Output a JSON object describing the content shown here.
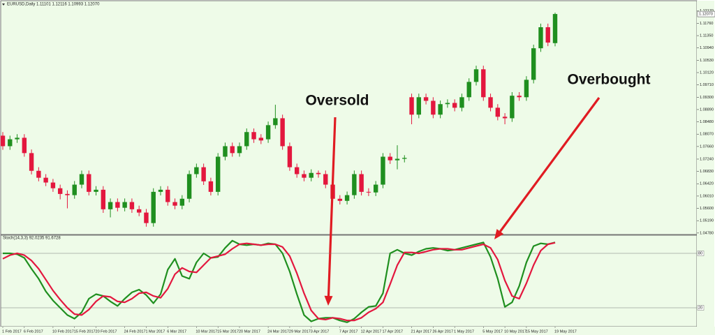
{
  "chart_data": [
    {
      "type": "candlestick",
      "title": "EURUSD,Daily  1.11101 1.12116 1.10993 1.12070",
      "up_color": "#1f8f1f",
      "down_color": "#e3173e",
      "open": [
        1.0802,
        1.0767,
        1.079,
        1.0795,
        1.0744,
        1.0685,
        1.0662,
        1.0646,
        1.0627,
        1.0608,
        1.0604,
        1.0639,
        1.0674,
        1.0615,
        1.0622,
        1.0557,
        1.0581,
        1.0562,
        1.0581,
        1.0557,
        1.0546,
        1.0511,
        1.0615,
        1.0622,
        1.0581,
        1.0569,
        1.0592,
        1.0674,
        1.0697,
        1.065,
        1.0615,
        1.0732,
        1.0767,
        1.0744,
        1.0767,
        1.0814,
        1.0795,
        1.079,
        1.0837,
        1.086,
        1.0767,
        1.0697,
        1.0674,
        1.0662,
        1.0678,
        1.0674,
        1.0639,
        1.0592,
        1.0585,
        1.0604,
        1.0674,
        1.0615,
        1.0613,
        1.0639,
        1.0732,
        1.072,
        1.0725,
        1.093,
        1.0872,
        1.093,
        1.0918,
        1.0872,
        1.0907,
        1.0911,
        1.0895,
        1.093,
        1.0981,
        1.1023,
        1.093,
        1.0895,
        1.0865,
        1.086,
        1.0935,
        1.093,
        1.0988,
        1.1093,
        1.1163,
        1.11101
      ],
      "high": [
        1.0814,
        1.0802,
        1.0807,
        1.0807,
        1.0756,
        1.0697,
        1.0674,
        1.0658,
        1.0639,
        1.062,
        1.0651,
        1.0686,
        1.0686,
        1.0634,
        1.0634,
        1.0593,
        1.0593,
        1.0593,
        1.0593,
        1.0569,
        1.0558,
        1.0627,
        1.0634,
        1.0634,
        1.0593,
        1.0604,
        1.0686,
        1.0709,
        1.0709,
        1.0662,
        1.0744,
        1.0779,
        1.0779,
        1.0779,
        1.0826,
        1.0826,
        1.0807,
        1.0849,
        1.0905,
        1.0872,
        1.0779,
        1.0709,
        1.0686,
        1.069,
        1.0686,
        1.0686,
        1.0651,
        1.0604,
        1.0616,
        1.0686,
        1.0686,
        1.0627,
        1.0651,
        1.0744,
        1.0744,
        1.077,
        1.0737,
        1.0942,
        1.0942,
        1.0942,
        1.093,
        1.0919,
        1.0923,
        1.0923,
        1.0942,
        1.0993,
        1.1035,
        1.1035,
        1.0942,
        1.0907,
        1.0877,
        1.0947,
        1.0947,
        1.1,
        1.1105,
        1.1175,
        1.1175,
        1.12116
      ],
      "low": [
        1.0755,
        1.0755,
        1.0778,
        1.0732,
        1.0673,
        1.065,
        1.0634,
        1.0615,
        1.059,
        1.056,
        1.0592,
        1.0627,
        1.0603,
        1.0603,
        1.0545,
        1.053,
        1.055,
        1.055,
        1.0545,
        1.0534,
        1.0499,
        1.0499,
        1.0603,
        1.0569,
        1.0557,
        1.0557,
        1.058,
        1.0662,
        1.0638,
        1.0603,
        1.0603,
        1.072,
        1.0732,
        1.0732,
        1.0755,
        1.0778,
        1.0774,
        1.0778,
        1.0825,
        1.0755,
        1.0685,
        1.0662,
        1.065,
        1.065,
        1.0662,
        1.0627,
        1.058,
        1.0573,
        1.0573,
        1.0592,
        1.0603,
        1.0601,
        1.0601,
        1.0627,
        1.0708,
        1.069,
        1.0713,
        1.084,
        1.086,
        1.0906,
        1.086,
        1.086,
        1.0895,
        1.0883,
        1.0883,
        1.0918,
        1.0969,
        1.0918,
        1.0883,
        1.0853,
        1.084,
        1.0848,
        1.0918,
        1.0918,
        1.0976,
        1.1081,
        1.11,
        1.10993
      ],
      "close": [
        1.0767,
        1.079,
        1.0795,
        1.0744,
        1.0685,
        1.0662,
        1.0646,
        1.0627,
        1.0608,
        1.0604,
        1.0639,
        1.0674,
        1.0615,
        1.0622,
        1.0557,
        1.0581,
        1.0562,
        1.0581,
        1.0557,
        1.0546,
        1.0511,
        1.0615,
        1.0622,
        1.0581,
        1.0569,
        1.0592,
        1.0674,
        1.0697,
        1.065,
        1.0615,
        1.0732,
        1.0767,
        1.0744,
        1.0767,
        1.0814,
        1.079,
        1.0786,
        1.0837,
        1.086,
        1.0767,
        1.0697,
        1.0674,
        1.0662,
        1.0678,
        1.0674,
        1.0639,
        1.0592,
        1.0585,
        1.0604,
        1.0674,
        1.0615,
        1.0613,
        1.0639,
        1.0732,
        1.072,
        1.0725,
        1.0728,
        1.0872,
        1.093,
        1.0918,
        1.0872,
        1.0907,
        1.0911,
        1.0895,
        1.093,
        1.0981,
        1.1023,
        1.093,
        1.0895,
        1.0865,
        1.086,
        1.0935,
        1.093,
        1.0988,
        1.1093,
        1.1163,
        1.1112,
        1.1207
      ],
      "ylim": [
        1.0473,
        1.1249
      ],
      "yticks": [
        {
          "value": 1.0478,
          "label": "1.04780"
        },
        {
          "value": 1.0519,
          "label": "1.05190"
        },
        {
          "value": 1.056,
          "label": "1.05600"
        },
        {
          "value": 1.0601,
          "label": "1.06010"
        },
        {
          "value": 1.0642,
          "label": "1.06420"
        },
        {
          "value": 1.0683,
          "label": "1.06830"
        },
        {
          "value": 1.0724,
          "label": "1.07240"
        },
        {
          "value": 1.0766,
          "label": "1.07660"
        },
        {
          "value": 1.0807,
          "label": "1.08070"
        },
        {
          "value": 1.0848,
          "label": "1.08480"
        },
        {
          "value": 1.0889,
          "label": "1.08890"
        },
        {
          "value": 1.093,
          "label": "1.09300"
        },
        {
          "value": 1.0971,
          "label": "1.09710"
        },
        {
          "value": 1.1012,
          "label": "1.10120"
        },
        {
          "value": 1.1053,
          "label": "1.10530"
        },
        {
          "value": 1.1094,
          "label": "1.10940"
        },
        {
          "value": 1.1135,
          "label": "1.11350"
        },
        {
          "value": 1.1176,
          "label": "1.11760"
        },
        {
          "value": 1.1217,
          "label": "1.12170"
        }
      ],
      "current_price": {
        "value": 1.1207,
        "label": "1.12070"
      },
      "annotations": [
        "Oversold",
        "Overbought"
      ]
    },
    {
      "type": "line",
      "title": "Stoch(14,3,3) 92.0235 91.6728",
      "categories": [
        "1 Feb 2017",
        null,
        null,
        "6 Feb 2017",
        null,
        null,
        null,
        "10 Feb 2017",
        null,
        null,
        "15 Feb 2017",
        null,
        null,
        "20 Feb 2017",
        null,
        null,
        null,
        "24 Feb 2017",
        null,
        null,
        "1 Mar 2017",
        null,
        null,
        "6 Mar 2017",
        null,
        null,
        null,
        "10 Mar 2017",
        null,
        null,
        "15 Mar 2017",
        null,
        null,
        "20 Mar 2017",
        null,
        null,
        null,
        "24 Mar 2017",
        null,
        null,
        "29 Mar 2017",
        null,
        null,
        "3 Apr 2017",
        null,
        null,
        null,
        "7 Apr 2017",
        null,
        null,
        "12 Apr 2017",
        null,
        null,
        "17 Apr 2017",
        null,
        null,
        null,
        "21 Apr 2017",
        null,
        null,
        "26 Apr 2017",
        null,
        null,
        "1 May 2017",
        null,
        null,
        null,
        "5 May 2017",
        null,
        null,
        "10 May 2017",
        null,
        null,
        "15 May 2017",
        null,
        null,
        null,
        "19 May 2017"
      ],
      "series": [
        {
          "color": "#1f8f1f",
          "values": [
            80,
            80,
            79,
            75,
            63,
            52,
            38,
            28,
            20,
            12,
            8,
            15,
            30,
            35,
            33,
            27,
            22,
            30,
            37,
            40,
            34,
            25,
            35,
            62,
            74,
            55,
            52,
            70,
            80,
            75,
            76,
            86,
            94,
            90,
            89,
            90,
            89,
            91,
            90,
            80,
            60,
            35,
            12,
            5,
            8,
            9,
            9,
            6,
            4,
            8,
            15,
            21,
            22,
            36,
            80,
            84,
            80,
            78,
            82,
            85,
            86,
            85,
            83,
            84,
            86,
            88,
            90,
            92,
            76,
            52,
            21,
            26,
            44,
            70,
            88,
            91,
            90,
            92.0235
          ]
        },
        {
          "color": "#e3173e",
          "values": [
            74,
            78,
            80,
            78,
            72,
            63,
            51,
            39,
            29,
            20,
            13,
            12,
            18,
            27,
            33,
            32,
            27,
            26,
            30,
            36,
            37,
            33,
            31,
            41,
            57,
            64,
            60,
            59,
            67,
            75,
            77,
            79,
            85,
            90,
            91,
            90,
            89,
            90,
            90,
            87,
            77,
            58,
            36,
            17,
            8,
            7,
            9,
            8,
            6,
            6,
            9,
            15,
            19,
            26,
            46,
            67,
            81,
            81,
            80,
            82,
            84,
            85,
            85,
            84,
            84,
            86,
            88,
            90,
            86,
            73,
            50,
            33,
            30,
            47,
            67,
            83,
            90,
            91.6728
          ]
        }
      ],
      "ylim": [
        0,
        100
      ],
      "yticks": [
        20,
        80
      ],
      "grid": true
    }
  ]
}
